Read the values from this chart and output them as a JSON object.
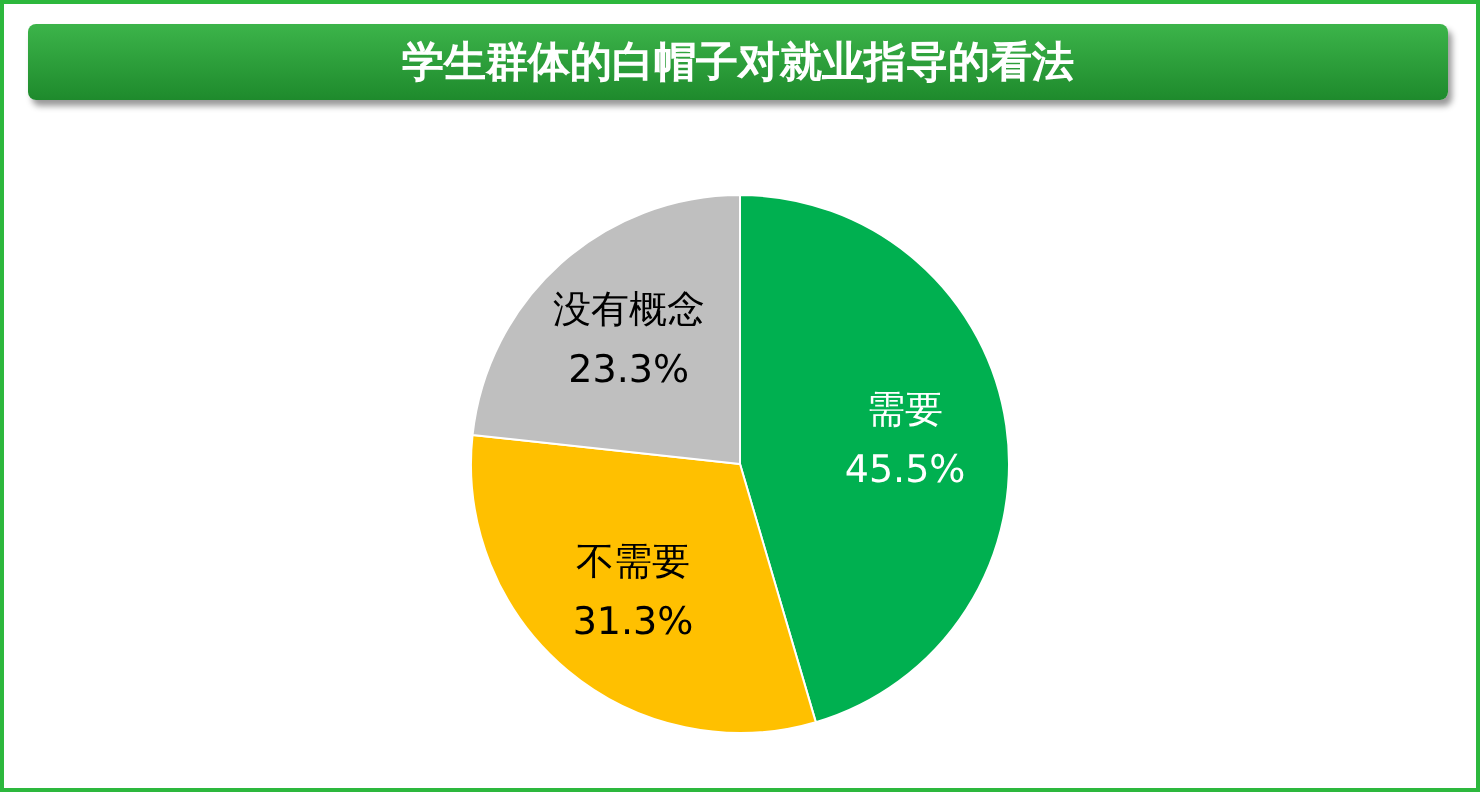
{
  "chart_data": {
    "type": "pie",
    "title": "学生群体的白帽子对就业指导的看法",
    "categories": [
      "需要",
      "不需要",
      "没有概念"
    ],
    "values": [
      45.5,
      31.3,
      23.3
    ],
    "colors": [
      "#00b050",
      "#ffc000",
      "#bfbfbf"
    ],
    "value_labels": [
      "45.5%",
      "31.3%",
      "23.3%"
    ]
  }
}
